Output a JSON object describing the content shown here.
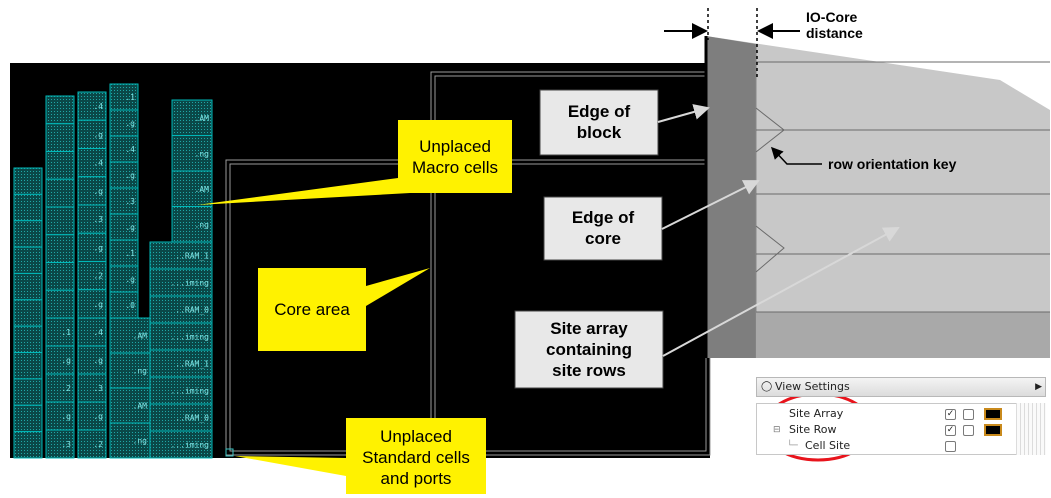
{
  "callouts": {
    "edge_of_block": [
      "Edge of",
      "block"
    ],
    "edge_of_core": [
      "Edge of",
      "core"
    ],
    "site_array": [
      "Site array",
      "containing",
      "site rows"
    ],
    "io_core": [
      "IO-Core",
      "distance"
    ],
    "row_key": "row orientation key",
    "unplaced_macro": [
      "Unplaced",
      "Macro cells"
    ],
    "core_area": "Core area",
    "unplaced_std": [
      "Unplaced",
      "Standard cells",
      "and ports"
    ]
  },
  "macro_labels": {
    "col_b": [
      ".4",
      ".g",
      ".4",
      ".g",
      ".3",
      ".g",
      ".2",
      ".g",
      ".1",
      ".g"
    ],
    "col_c": [
      ".1",
      ".g",
      ".4",
      ".g",
      ".3",
      ".g",
      ".1",
      ".g",
      ".0",
      ".g"
    ],
    "col_d": [
      ".AM",
      ".ng",
      ".AM",
      ".ng"
    ],
    "col_ram": [
      "..RAM_1",
      "...iming",
      "..RAM_0",
      "...iming",
      "..RAM_1",
      "...iming",
      "..RAM_0",
      "...iming"
    ],
    "lower_a": [
      ".1",
      ".g",
      ".2",
      ".g",
      ".3",
      ".g"
    ],
    "lower_b": [
      ".4",
      ".g",
      ".3",
      ".g",
      ".2",
      ".g"
    ],
    "lower_c": [
      ".AM",
      ".ng",
      ".AM",
      ".ng"
    ]
  },
  "view_settings": {
    "title": "View Settings",
    "items": [
      {
        "label": "Site Array",
        "visible": true,
        "selectable": false,
        "has_color": true
      },
      {
        "label": "Site Row",
        "visible": true,
        "selectable": false,
        "has_color": true
      },
      {
        "label": "Cell Site",
        "visible": false,
        "has_color": false
      }
    ]
  },
  "colors": {
    "canvas": "#000000",
    "macro_outline": "#00b8b8",
    "macro_fill": "#0c5a5a",
    "core_outline": "#b8b8b8",
    "callout_yellow": "#fff200",
    "callout_grey": "#e8e8e8",
    "highlight_ring": "#e8141c",
    "swatch_border": "#c98a1c"
  }
}
